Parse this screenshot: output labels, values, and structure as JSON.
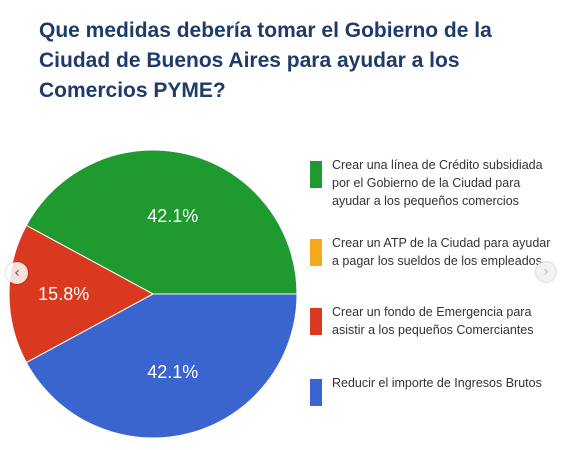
{
  "chart_data": {
    "type": "pie",
    "title": "Que medidas debería tomar el Gobierno de la Ciudad de Buenos Aires para ayudar a los Comercios PYME?",
    "slices": [
      {
        "label": "Crear una línea de Crédito subsidiada por el Gobierno de la Ciudad para ayudar a los pequeños comercios",
        "value": 42.1,
        "display": "42.1%",
        "color": "#1e9a2e"
      },
      {
        "label": "Crear un ATP de la Ciudad para ayudar a pagar los sueldos de los empleados",
        "value": 0,
        "display": "",
        "color": "#f4a81b"
      },
      {
        "label": "Crear un fondo de Emergencia para asistir a los pequeños Comerciantes",
        "value": 15.8,
        "display": "15.8%",
        "color": "#d93a1f"
      },
      {
        "label": "Reducir el importe de Ingresos Brutos",
        "value": 42.1,
        "display": "42.1%",
        "color": "#3a65cf"
      }
    ],
    "legend_position": "right"
  },
  "carousel": {
    "prev_icon": "chevron-left-icon",
    "next_icon": "chevron-right-icon",
    "prev_glyph": "‹",
    "next_glyph": "›"
  }
}
